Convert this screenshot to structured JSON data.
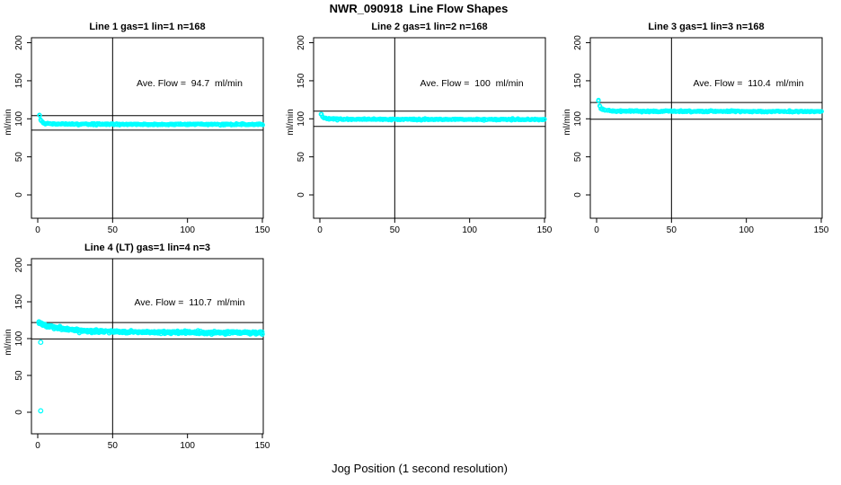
{
  "figure": {
    "title": "NWR_090918  Line Flow Shapes",
    "xlabel": "Jog Position (1 second resolution)"
  },
  "chart_data": {
    "type": "scatter",
    "point_color": "#00ffff",
    "line_color": "#000000",
    "xlim": [
      0,
      150
    ],
    "ylim": [
      0,
      200
    ],
    "x_ticks": [
      0,
      50,
      100,
      150
    ],
    "y_ticks": [
      0,
      50,
      100,
      150,
      200
    ],
    "grid": false,
    "panels": [
      {
        "title": "Line 1 gas=1 lin=1 n=168",
        "annotation": "Ave. Flow =  94.7  ml/min",
        "ave_flow": 94.7,
        "n": 168,
        "ylabel": "ml/min",
        "vline_x": 50,
        "hlines": [
          104.2,
          85.2
        ],
        "curve": [
          [
            1,
            104.5
          ],
          [
            2,
            98
          ],
          [
            3,
            95.5
          ],
          [
            5,
            93.8
          ],
          [
            10,
            93.2
          ],
          [
            20,
            93.0
          ],
          [
            50,
            92.8
          ],
          [
            100,
            92.7
          ],
          [
            150,
            92.6
          ]
        ],
        "noise_sd": 0.45,
        "passes": 2,
        "outliers": []
      },
      {
        "title": "Line 2 gas=1 lin=2 n=168",
        "annotation": "Ave. Flow =  100  ml/min",
        "ave_flow": 100,
        "n": 168,
        "ylabel": "ml/min",
        "vline_x": 50,
        "hlines": [
          110,
          90
        ],
        "curve": [
          [
            1,
            106
          ],
          [
            2,
            102.5
          ],
          [
            3,
            101
          ],
          [
            5,
            100
          ],
          [
            10,
            99.6
          ],
          [
            20,
            99.4
          ],
          [
            50,
            99.2
          ],
          [
            100,
            99.1
          ],
          [
            150,
            99.0
          ]
        ],
        "noise_sd": 0.45,
        "passes": 2,
        "outliers": []
      },
      {
        "title": "Line 3 gas=1 lin=3 n=168",
        "annotation": "Ave. Flow =  110.4  ml/min",
        "ave_flow": 110.4,
        "n": 168,
        "ylabel": "ml/min",
        "vline_x": 50,
        "hlines": [
          121.4,
          99.4
        ],
        "curve": [
          [
            1,
            124.5
          ],
          [
            2,
            117
          ],
          [
            3,
            113.5
          ],
          [
            5,
            111.5
          ],
          [
            10,
            110.3
          ],
          [
            20,
            110.0
          ],
          [
            50,
            109.8
          ],
          [
            100,
            109.7
          ],
          [
            150,
            109.6
          ]
        ],
        "noise_sd": 0.45,
        "passes": 2,
        "outliers": []
      },
      {
        "title": "Line 4 (LT) gas=1 lin=4 n=3",
        "annotation": "Ave. Flow =  110.7  ml/min",
        "ave_flow": 110.7,
        "n": 3,
        "ylabel": "ml/min",
        "vline_x": 50,
        "hlines": [
          121.8,
          99.6
        ],
        "curve": [
          [
            1,
            121.5
          ],
          [
            3,
            119.5
          ],
          [
            5,
            118
          ],
          [
            10,
            115.5
          ],
          [
            20,
            112.5
          ],
          [
            30,
            110.8
          ],
          [
            50,
            109.3
          ],
          [
            75,
            108.6
          ],
          [
            100,
            108.3
          ],
          [
            125,
            108.2
          ],
          [
            150,
            108.0
          ]
        ],
        "noise_sd": 0.9,
        "passes": 3,
        "outliers": [
          [
            2,
            95
          ],
          [
            2,
            2
          ]
        ]
      }
    ]
  }
}
